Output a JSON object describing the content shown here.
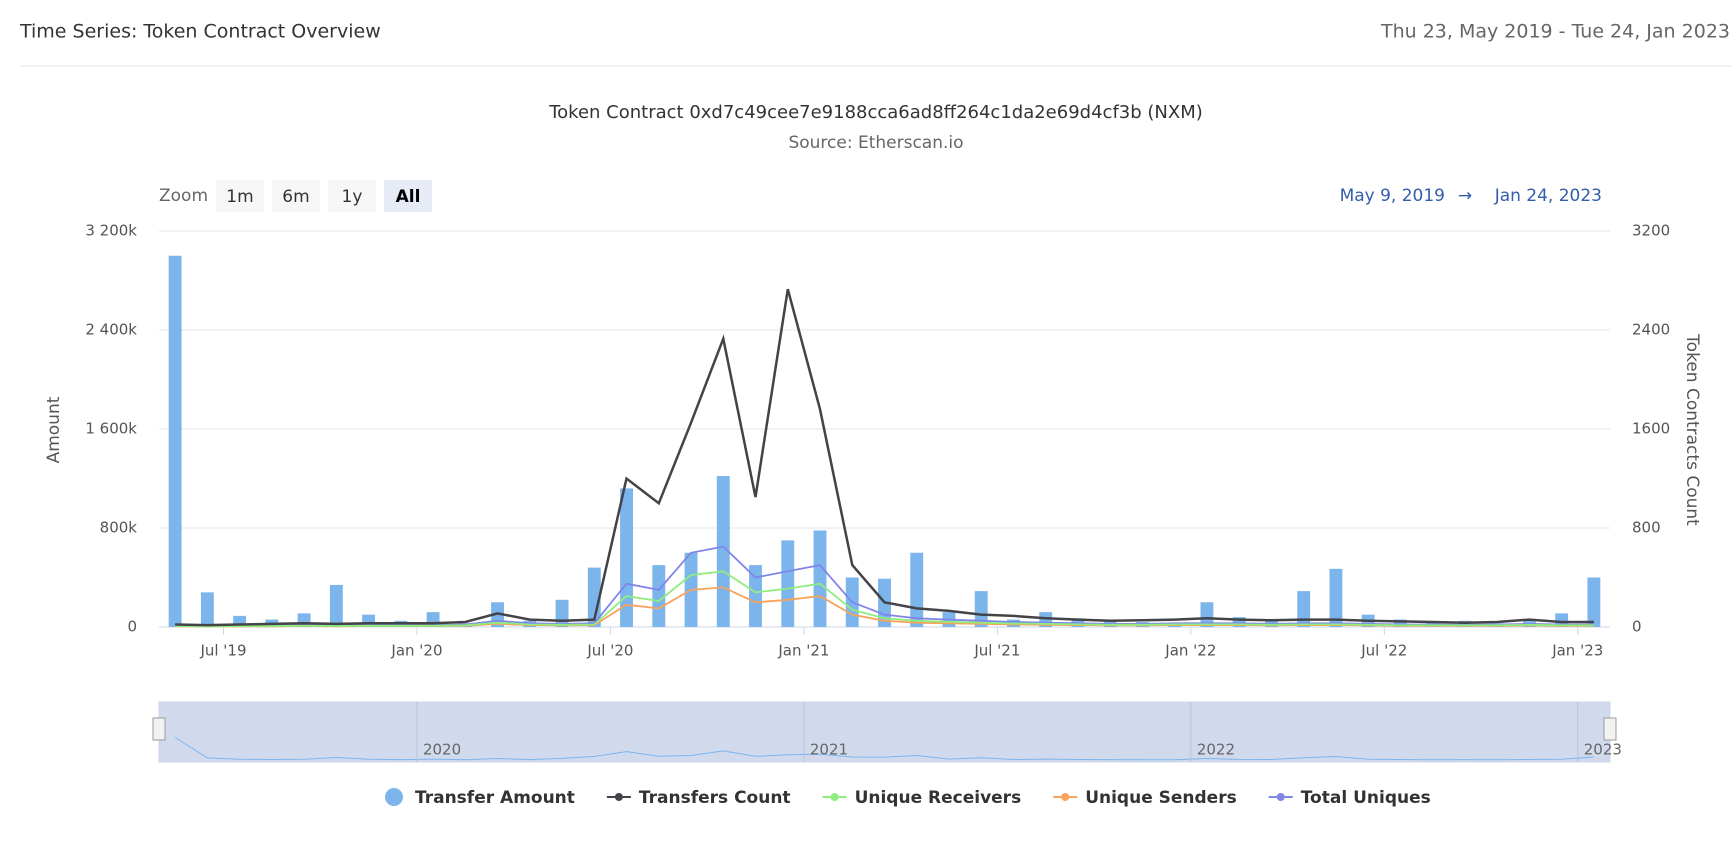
{
  "header": {
    "title": "Time Series: Token Contract Overview",
    "date_range": "Thu 23, May 2019 - Tue 24, Jan 2023"
  },
  "range_selector": {
    "zoom_label": "Zoom",
    "buttons": [
      "1m",
      "6m",
      "1y",
      "All"
    ],
    "selected": 3,
    "from": "May 9, 2019",
    "arrow": "→",
    "to": "Jan 24, 2023"
  },
  "chart_data": {
    "type": "combo",
    "title": "Token Contract 0xd7c49cee7e9188cca6ad8ff264c1da2e69d4cf3b (NXM)",
    "subtitle": "Source: Etherscan.io",
    "y_label": "Amount",
    "y2_label": "Token Contracts Count",
    "x": [
      "2019-05",
      "2019-06",
      "2019-07",
      "2019-08",
      "2019-09",
      "2019-10",
      "2019-11",
      "2019-12",
      "2020-01",
      "2020-02",
      "2020-03",
      "2020-04",
      "2020-05",
      "2020-06",
      "2020-07",
      "2020-08",
      "2020-09",
      "2020-10",
      "2020-11",
      "2020-12",
      "2021-01",
      "2021-02",
      "2021-03",
      "2021-04",
      "2021-05",
      "2021-06",
      "2021-07",
      "2021-08",
      "2021-09",
      "2021-10",
      "2021-11",
      "2021-12",
      "2022-01",
      "2022-02",
      "2022-03",
      "2022-04",
      "2022-05",
      "2022-06",
      "2022-07",
      "2022-08",
      "2022-09",
      "2022-10",
      "2022-11",
      "2022-12",
      "2023-01"
    ],
    "xticks": [
      {
        "value": "2019-07",
        "label": "Jul '19"
      },
      {
        "value": "2020-01",
        "label": "Jan '20"
      },
      {
        "value": "2020-07",
        "label": "Jul '20"
      },
      {
        "value": "2021-01",
        "label": "Jan '21"
      },
      {
        "value": "2021-07",
        "label": "Jul '21"
      },
      {
        "value": "2022-01",
        "label": "Jan '22"
      },
      {
        "value": "2022-07",
        "label": "Jul '22"
      },
      {
        "value": "2023-01",
        "label": "Jan '23"
      }
    ],
    "ylim": [
      0,
      3200000
    ],
    "yticks": [
      {
        "value": 0,
        "label": "0"
      },
      {
        "value": 800000,
        "label": "800k"
      },
      {
        "value": 1600000,
        "label": "1 600k"
      },
      {
        "value": 2400000,
        "label": "2 400k"
      },
      {
        "value": 3200000,
        "label": "3 200k"
      }
    ],
    "y2lim": [
      0,
      3200
    ],
    "y2ticks": [
      0,
      800,
      1600,
      2400,
      3200
    ],
    "grid": true,
    "series": [
      {
        "name": "Transfer Amount",
        "type": "bar",
        "color": "#7cb5ec",
        "values": [
          3000000,
          280000,
          90000,
          60000,
          110000,
          340000,
          100000,
          50000,
          120000,
          30000,
          200000,
          50000,
          220000,
          480000,
          1120000,
          500000,
          600000,
          1220000,
          500000,
          700000,
          780000,
          400000,
          390000,
          600000,
          120000,
          290000,
          60000,
          120000,
          70000,
          50000,
          40000,
          30000,
          200000,
          80000,
          60000,
          290000,
          470000,
          100000,
          60000,
          40000,
          50000,
          30000,
          60000,
          110000,
          400000
        ]
      },
      {
        "name": "Transfers Count",
        "type": "line",
        "axis": "y2",
        "color": "#434348",
        "values": [
          20,
          15,
          20,
          25,
          30,
          25,
          30,
          30,
          30,
          40,
          110,
          60,
          50,
          60,
          1200,
          1000,
          1650,
          2330,
          1050,
          2730,
          1760,
          500,
          200,
          150,
          130,
          100,
          90,
          70,
          60,
          50,
          55,
          60,
          70,
          60,
          55,
          60,
          60,
          50,
          45,
          40,
          35,
          40,
          60,
          40,
          40
        ]
      },
      {
        "name": "Unique Receivers",
        "type": "line",
        "axis": "y2",
        "color": "#90ed7d",
        "values": [
          7,
          6,
          7,
          8,
          10,
          8,
          10,
          10,
          10,
          14,
          35,
          20,
          18,
          20,
          250,
          210,
          420,
          450,
          280,
          310,
          350,
          140,
          70,
          50,
          42,
          35,
          28,
          25,
          21,
          18,
          18,
          21,
          21,
          21,
          18,
          21,
          21,
          18,
          14,
          14,
          13,
          14,
          18,
          14,
          14
        ]
      },
      {
        "name": "Unique Senders",
        "type": "line",
        "axis": "y2",
        "color": "#f7a35c",
        "values": [
          5,
          4,
          5,
          6,
          8,
          6,
          8,
          8,
          8,
          10,
          25,
          15,
          13,
          15,
          180,
          150,
          300,
          320,
          200,
          220,
          250,
          100,
          50,
          35,
          30,
          25,
          20,
          18,
          15,
          13,
          13,
          15,
          15,
          15,
          13,
          15,
          15,
          13,
          10,
          10,
          9,
          10,
          13,
          10,
          10
        ]
      },
      {
        "name": "Total Uniques",
        "type": "line",
        "axis": "y2",
        "color": "#8085e9",
        "values": [
          10,
          8,
          10,
          12,
          15,
          12,
          15,
          15,
          15,
          20,
          50,
          30,
          25,
          30,
          350,
          300,
          600,
          650,
          400,
          450,
          500,
          200,
          100,
          70,
          60,
          50,
          40,
          35,
          30,
          25,
          25,
          30,
          30,
          30,
          25,
          30,
          30,
          25,
          20,
          20,
          18,
          20,
          25,
          20,
          20
        ]
      }
    ],
    "navigator_labels": [
      {
        "value": "2020-01",
        "label": "2020"
      },
      {
        "value": "2021-01",
        "label": "2021"
      },
      {
        "value": "2022-01",
        "label": "2022"
      },
      {
        "value": "2023-01",
        "label": "2023"
      }
    ]
  }
}
